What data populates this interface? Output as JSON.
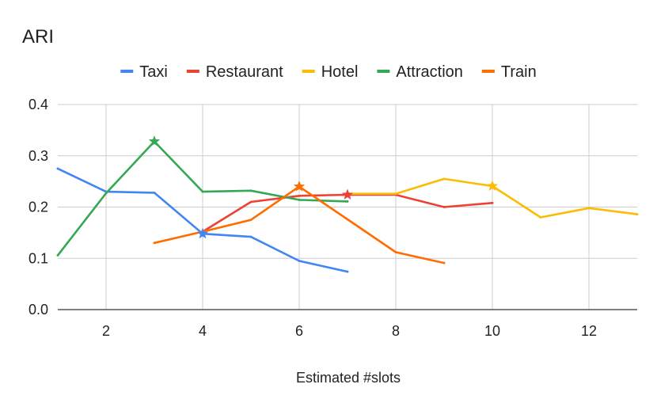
{
  "chart_data": {
    "type": "line",
    "title": "ARI",
    "xlabel": "Estimated #slots",
    "ylabel": "",
    "xlim": [
      1,
      13
    ],
    "ylim": [
      0,
      0.4
    ],
    "x_ticks": [
      2,
      4,
      6,
      8,
      10,
      12
    ],
    "y_ticks": [
      0.0,
      0.1,
      0.2,
      0.3,
      0.4
    ],
    "y_tick_labels": [
      "0.0",
      "0.1",
      "0.2",
      "0.3",
      "0.4"
    ],
    "grid": true,
    "legend_position": "top",
    "series": [
      {
        "name": "Taxi",
        "color": "#4285F4",
        "x": [
          1,
          2,
          3,
          4,
          5,
          6,
          7
        ],
        "y": [
          0.275,
          0.23,
          0.228,
          0.148,
          0.142,
          0.095,
          0.074
        ],
        "marker_x": 4
      },
      {
        "name": "Restaurant",
        "color": "#EA4335",
        "x": [
          4,
          5,
          6,
          7,
          8,
          9,
          10
        ],
        "y": [
          0.152,
          0.21,
          0.222,
          0.224,
          0.224,
          0.2,
          0.208
        ],
        "marker_x": 7
      },
      {
        "name": "Hotel",
        "color": "#FBBC04",
        "x": [
          7,
          8,
          9,
          10,
          11,
          12,
          13
        ],
        "y": [
          0.226,
          0.226,
          0.255,
          0.241,
          0.18,
          0.198,
          0.186
        ],
        "marker_x": 10
      },
      {
        "name": "Attraction",
        "color": "#34A853",
        "x": [
          1,
          2,
          3,
          4,
          5,
          6,
          7
        ],
        "y": [
          0.106,
          0.227,
          0.328,
          0.23,
          0.232,
          0.214,
          0.211
        ],
        "marker_x": 3
      },
      {
        "name": "Train",
        "color": "#FF6D01",
        "x": [
          3,
          4,
          5,
          6,
          7,
          8,
          9
        ],
        "y": [
          0.13,
          0.152,
          0.175,
          0.24,
          0.176,
          0.112,
          0.091
        ],
        "marker_x": 6
      }
    ]
  }
}
